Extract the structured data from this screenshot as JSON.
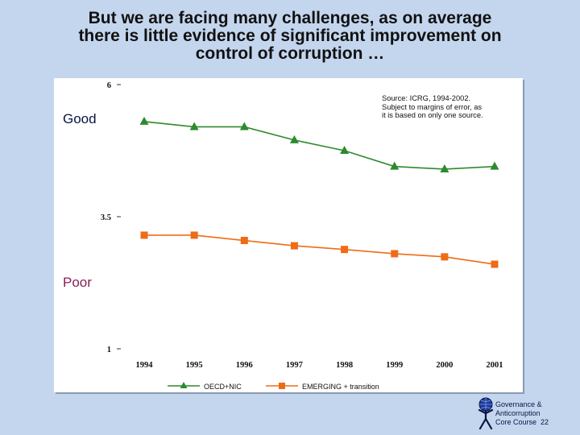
{
  "slide": {
    "title_line1": "But we are facing many challenges, as on average",
    "title_line2": "there is little evidence of significant improvement on",
    "title_line3": "control of corruption …",
    "good_label": "Good",
    "poor_label": "Poor",
    "source_line1": "Source:  ICRG, 1994-2002.",
    "source_line2": "Subject to margins of error, as",
    "source_line3": "it is based on only one source.",
    "footer_line1": "Governance &",
    "footer_line2": "Anticorruption",
    "footer_line3": "Core Course",
    "page_number": "22"
  },
  "chart_data": {
    "type": "line",
    "title": "",
    "xlabel": "",
    "ylabel": "",
    "categories": [
      "1994",
      "1995",
      "1996",
      "1997",
      "1998",
      "1999",
      "2000",
      "2001"
    ],
    "ylim": [
      1,
      6
    ],
    "yticks": [
      "6",
      "3.5",
      "1"
    ],
    "legend_position": "bottom",
    "series": [
      {
        "name": "OECD+NIC",
        "color": "#2d8a2d",
        "marker": "triangle",
        "values": [
          5.3,
          5.2,
          5.2,
          4.95,
          4.75,
          4.45,
          4.4,
          4.45
        ]
      },
      {
        "name": "EMERGING + transition",
        "color": "#ef6b15",
        "marker": "square",
        "values": [
          3.15,
          3.15,
          3.05,
          2.95,
          2.88,
          2.8,
          2.74,
          2.6
        ]
      }
    ]
  },
  "colors": {
    "background": "#c4d6ee",
    "good": "#0a1446",
    "poor": "#8a1f55"
  }
}
